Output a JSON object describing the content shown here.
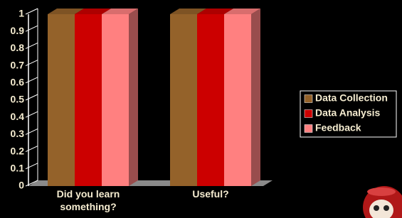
{
  "chart_data": {
    "type": "bar3d",
    "categories": [
      "Did you learn something?",
      "Useful?"
    ],
    "series": [
      {
        "name": "Data Collection",
        "color": "#94622a",
        "values": [
          1,
          1
        ]
      },
      {
        "name": "Data Analysis",
        "color": "#cc0000",
        "values": [
          1,
          1
        ]
      },
      {
        "name": "Feedback",
        "color": "#ff8080",
        "values": [
          1,
          1
        ]
      }
    ],
    "ylim": [
      0,
      1
    ],
    "yticks": [
      0,
      0.1,
      0.2,
      0.3,
      0.4,
      0.5,
      0.6,
      0.7,
      0.8,
      0.9,
      1
    ],
    "legend": "right"
  }
}
